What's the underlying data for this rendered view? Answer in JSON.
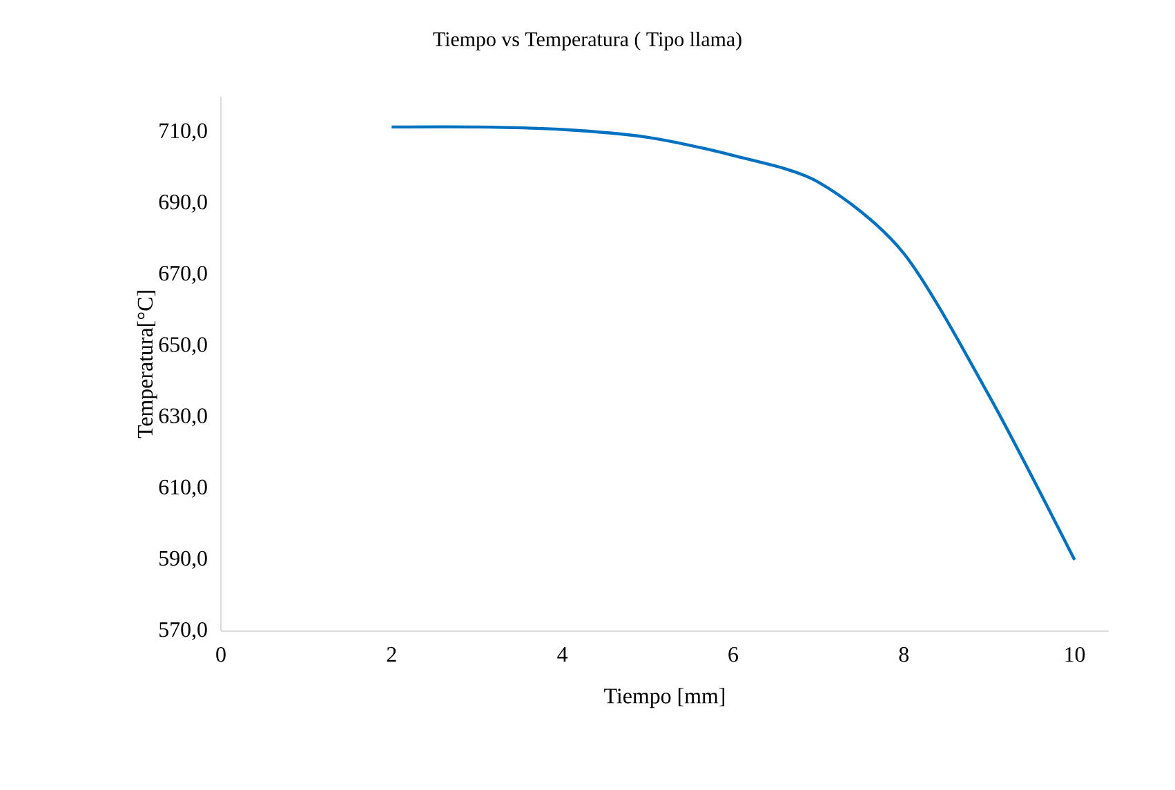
{
  "chart_data": {
    "type": "line",
    "title": "Tiempo vs Temperatura ( Tipo llama)",
    "xlabel": "Tiempo [mm]",
    "ylabel": "Temperatura[°C]",
    "x": [
      2,
      3,
      4,
      5,
      6,
      7,
      8,
      9,
      10
    ],
    "series": [
      {
        "color": "#0070c0",
        "values": [
          711.5,
          711.5,
          710.8,
          708.6,
          703.5,
          696,
          676,
          636,
          590
        ]
      }
    ],
    "xlim": [
      0,
      10.4
    ],
    "ylim": [
      570,
      720
    ],
    "xticks": [
      0,
      2,
      4,
      6,
      8,
      10
    ],
    "yticks": [
      {
        "value": 570,
        "label": "570,0"
      },
      {
        "value": 590,
        "label": "590,0"
      },
      {
        "value": 610,
        "label": "610,0"
      },
      {
        "value": 630,
        "label": "630,0"
      },
      {
        "value": 650,
        "label": "650,0"
      },
      {
        "value": 670,
        "label": "670,0"
      },
      {
        "value": 690,
        "label": "690,0"
      },
      {
        "value": 710,
        "label": "710,0"
      }
    ],
    "grid": false,
    "marker": "none",
    "line_style": "solid"
  }
}
